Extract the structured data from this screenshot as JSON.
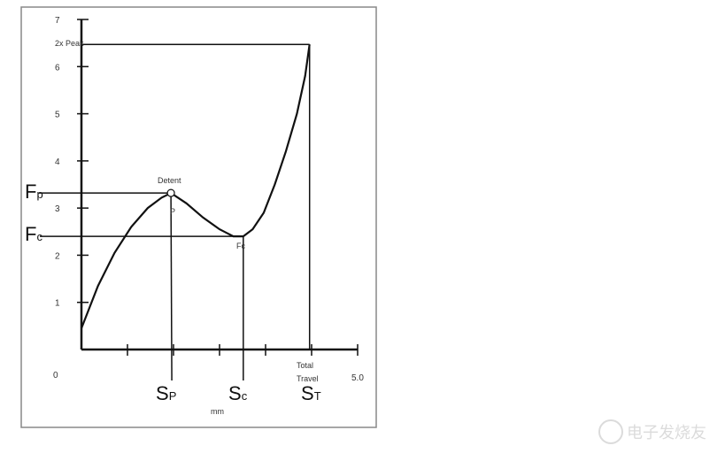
{
  "chart_data": {
    "type": "line",
    "xlabel": "mm",
    "x_tick_labels": [
      "0",
      "5.0"
    ],
    "y_tick_labels": [
      "1",
      "2",
      "3",
      "4",
      "5",
      "6",
      "7"
    ],
    "xlim": [
      0,
      5.0
    ],
    "ylim": [
      0,
      7
    ],
    "grid": false,
    "series": [
      {
        "x": [
          0,
          0.3,
          0.6,
          0.9,
          1.2,
          1.45,
          1.62,
          1.9,
          2.2,
          2.5,
          2.75,
          2.93,
          3.1,
          3.3,
          3.5,
          3.7,
          3.9,
          4.05,
          4.13
        ],
        "y": [
          0.45,
          1.35,
          2.05,
          2.6,
          3.0,
          3.22,
          3.32,
          3.1,
          2.8,
          2.55,
          2.4,
          2.4,
          2.55,
          2.9,
          3.5,
          4.2,
          5.0,
          5.8,
          6.47
        ]
      }
    ],
    "annotations": {
      "peak_label": "2x Peak",
      "peak_value": 6.47,
      "detent": "Detent",
      "p_label": "P",
      "fc_point_label": "Fc",
      "total_travel_1": "Total",
      "total_travel_2": "Travel",
      "fp": {
        "main": "F",
        "sub": "p",
        "value": 3.32
      },
      "fc": {
        "main": "F",
        "sub": "c",
        "value": 2.4
      },
      "sp": {
        "main": "S",
        "sub": "P",
        "value": 1.62
      },
      "sc": {
        "main": "S",
        "sub": "c",
        "value": 2.93
      },
      "st": {
        "main": "S",
        "sub": "T",
        "value": 4.13
      }
    },
    "colors": {
      "line": "#111111",
      "frame": "#888888"
    }
  },
  "watermark": "电子发烧友"
}
